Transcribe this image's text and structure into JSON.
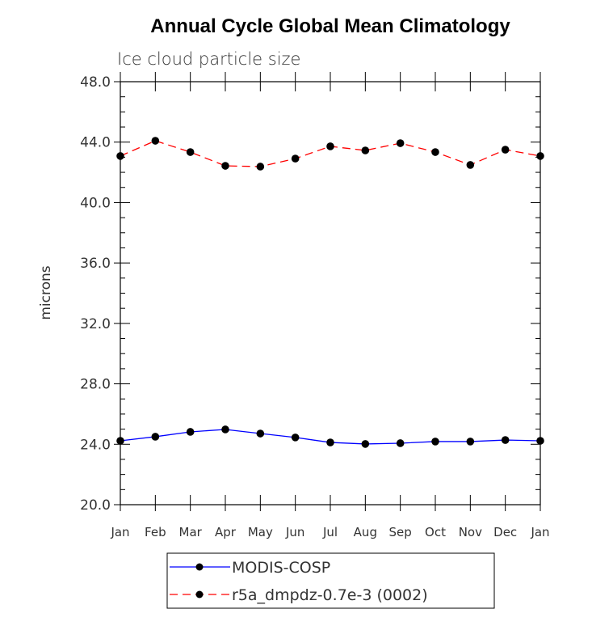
{
  "chart_data": {
    "type": "line",
    "title": "Annual Cycle Global Mean Climatology",
    "subtitle": "Ice cloud particle size",
    "xlabel": "",
    "ylabel": "microns",
    "ylim": [
      20,
      48
    ],
    "yticks": [
      "20.0",
      "24.0",
      "28.0",
      "32.0",
      "36.0",
      "40.0",
      "44.0",
      "48.0"
    ],
    "categories": [
      "Jan",
      "Feb",
      "Mar",
      "Apr",
      "May",
      "Jun",
      "Jul",
      "Aug",
      "Sep",
      "Oct",
      "Nov",
      "Dec",
      "Jan"
    ],
    "grid": false,
    "legend_position": "bottom",
    "series": [
      {
        "name": "MODIS-COSP",
        "color": "#0000ff",
        "dash": "solid",
        "values": [
          24.23,
          24.5,
          24.82,
          24.98,
          24.71,
          24.45,
          24.12,
          24.02,
          24.07,
          24.18,
          24.18,
          24.28,
          24.23
        ]
      },
      {
        "name": "r5a_dmpdz-0.7e-3 (0002)",
        "color": "#ff0000",
        "dash": "dashed",
        "values": [
          43.08,
          44.09,
          43.34,
          42.43,
          42.38,
          42.91,
          43.72,
          43.45,
          43.93,
          43.34,
          42.49,
          43.5,
          43.08
        ]
      }
    ]
  }
}
